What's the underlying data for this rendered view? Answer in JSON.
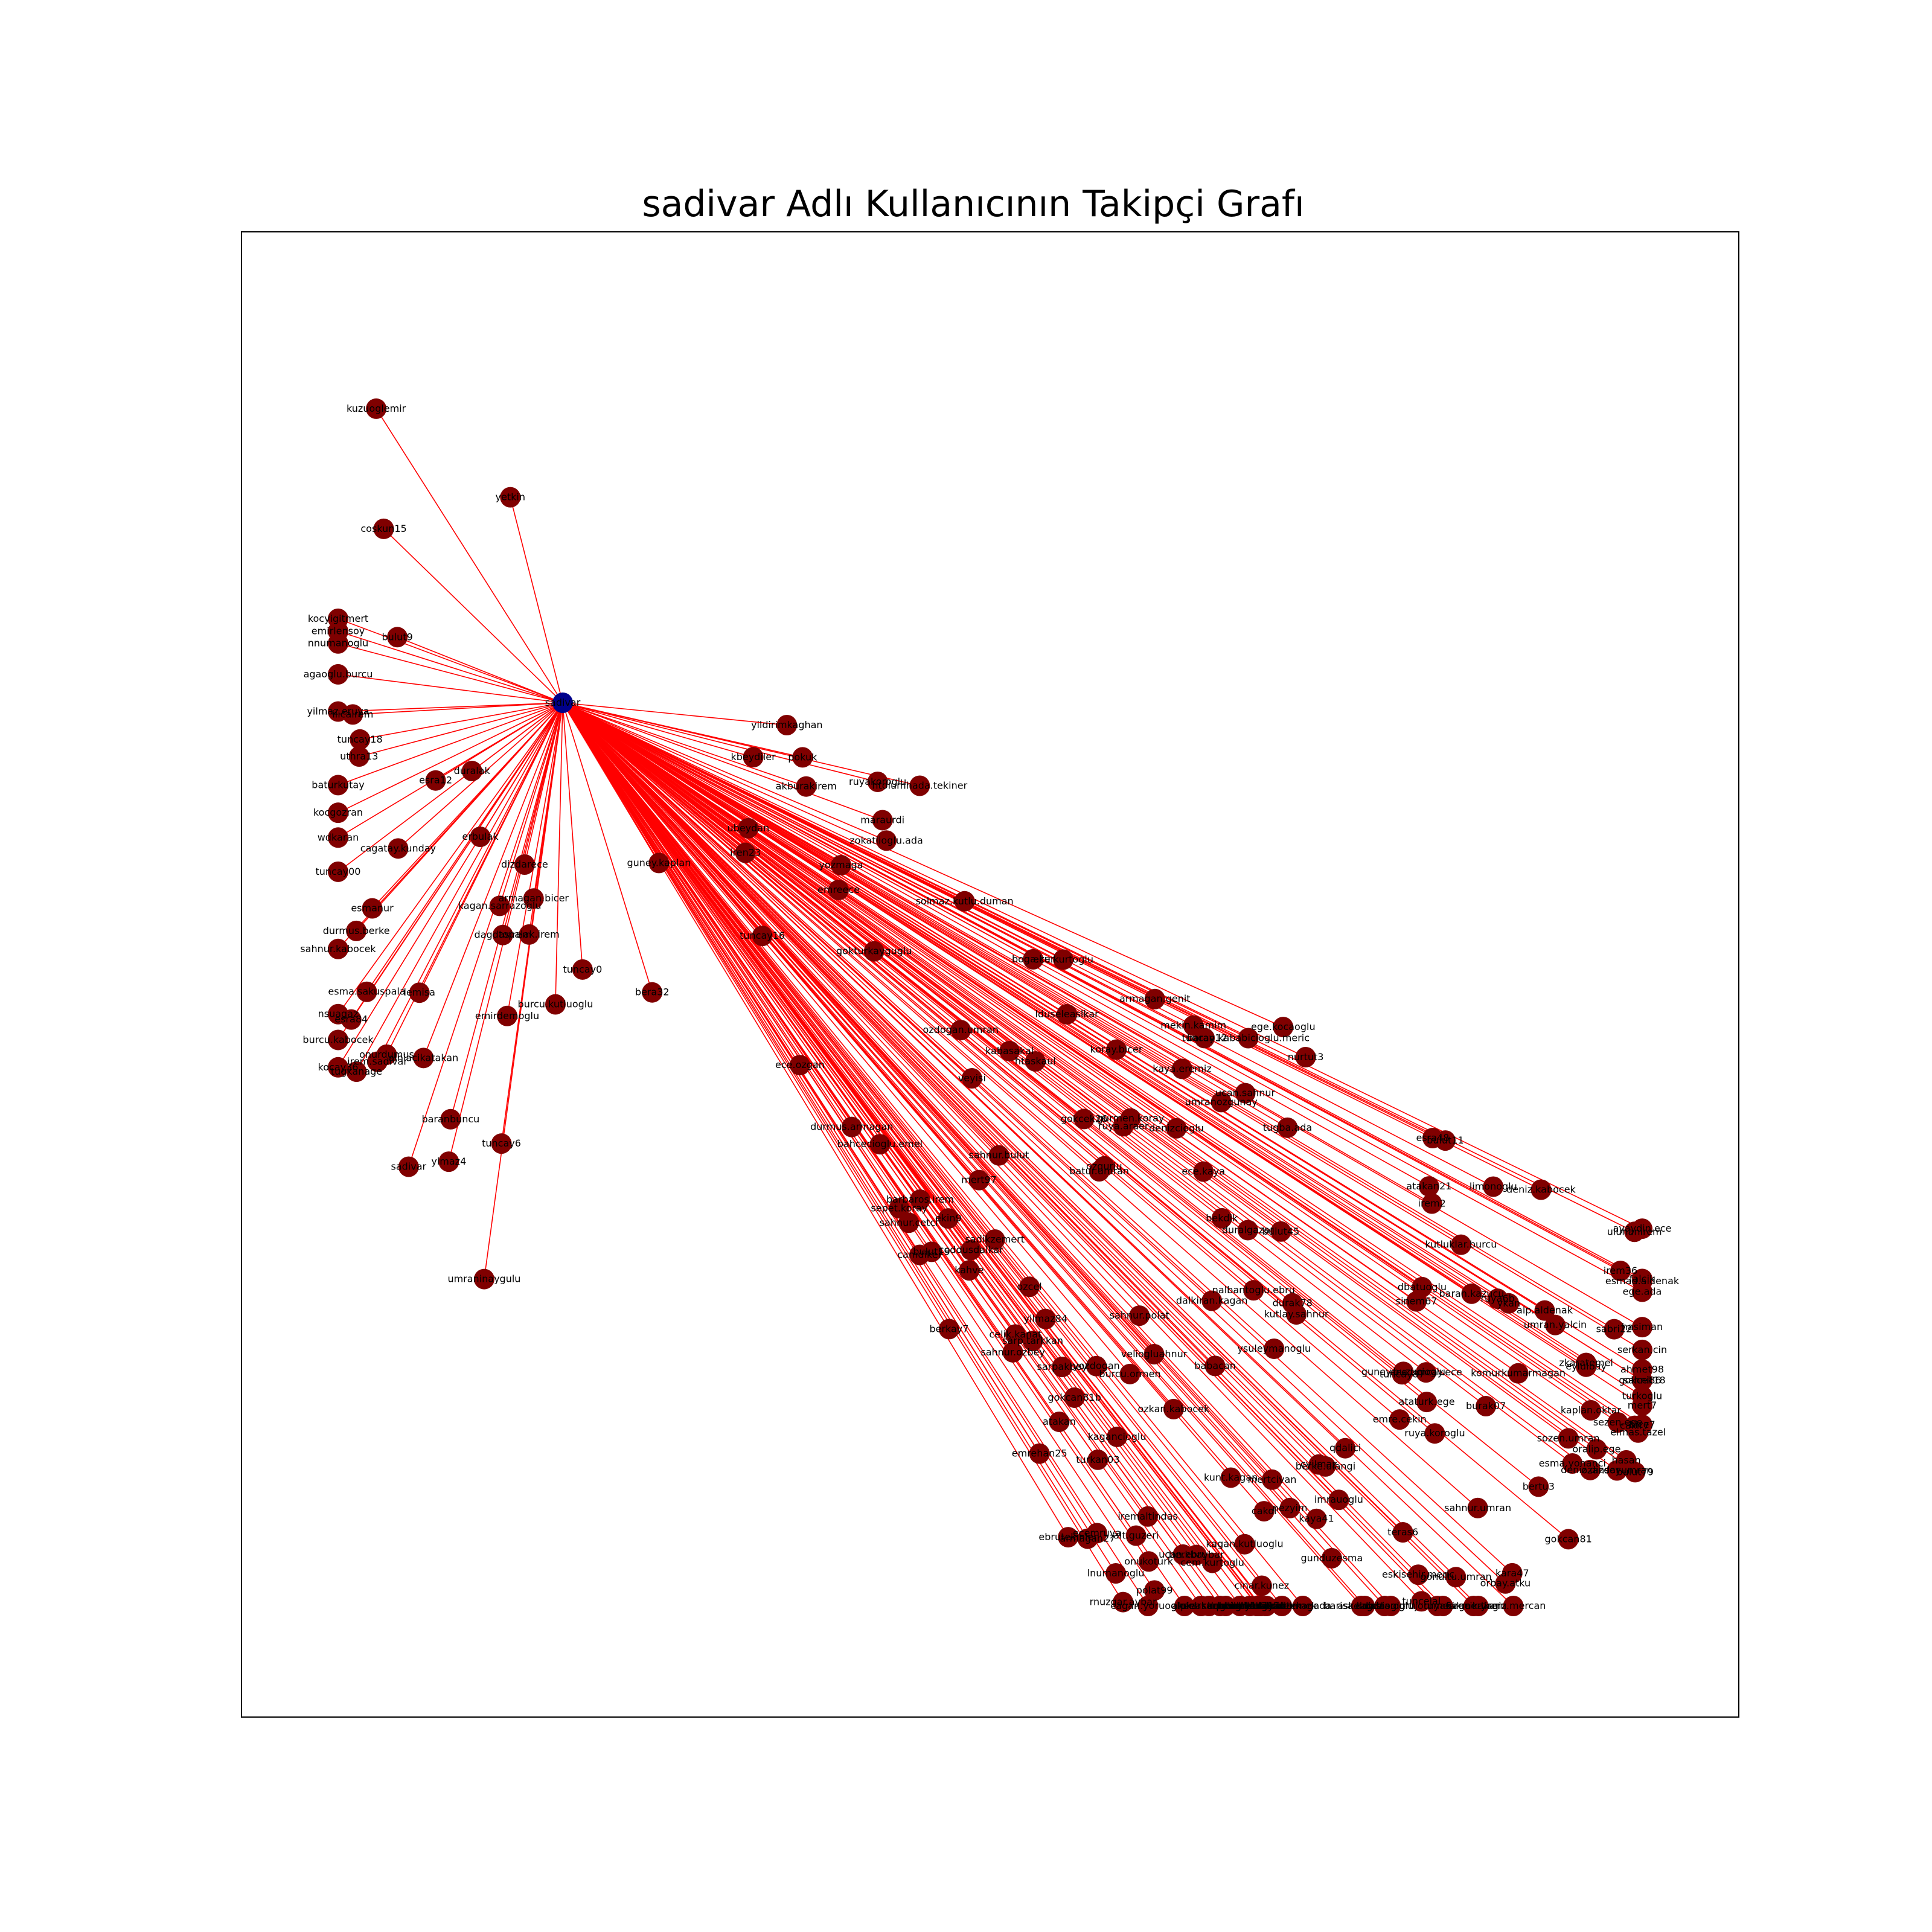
{
  "title": "sadivar Adlı Kullanıcının Takipçi Grafı",
  "colors": {
    "edge": "#ff0000",
    "node": "#800000",
    "center_node": "#00008b",
    "frame": "#000000",
    "background": "#ffffff"
  },
  "graph": {
    "center": "sadivar",
    "followers": [
      "onurdumus",
      "kocyigitmert",
      "alniacikatakan",
      "tuncay18",
      "lemisa",
      "armagan.bicer",
      "akburakirem",
      "yetkin",
      "tuncay00",
      "iren23",
      "coskun15",
      "dizdarece",
      "nnumanoglu",
      "tuncay6",
      "topalak.irem",
      "yozmaga",
      "kuzuoglemir",
      "maraurdi",
      "kbeydiler",
      "emirlensoy",
      "sahnur.kabocek",
      "tugkanage",
      "bulut9",
      "esra84",
      "umraninaygulu",
      "emirdemoglu",
      "ubeydan",
      "cagatay.kunday",
      "tuncay0",
      "kocgozran",
      "burcu.kabocek",
      "kocay36",
      "yildirimkaghan",
      "erbulak",
      "wdkaran",
      "baranbuncu",
      "pokuk",
      "burcu.kutluoglu",
      "dagdasirem",
      "kagan.sarrazoglu",
      "ylmaz4",
      "bera32",
      "baturkutay",
      "tuncay16",
      "ruyakoroglu",
      "esra12",
      "zokatlioglu.ada",
      "uthra13",
      "irem.sadivar",
      "sadivar",
      "agaoglu.burcu",
      "durmus.berke",
      "duralak",
      "nsuagaz",
      "yilmaz.eruya",
      "esma.sakuspala",
      "htolumhada.tekiner",
      "ilicairem",
      "guney.kaplan",
      "esmanur",
      "ayaydin.ece",
      "cagdas.oglu",
      "uluhanirem",
      "sinem67",
      "burcu.ormen",
      "kutlay.sahnur",
      "hasiman",
      "kaya.eremiz",
      "durmus.armagan",
      "gokturkayguglu",
      "gokcan81",
      "berkay7",
      "adamagada",
      "teras6",
      "baran.kababicioglu.meric",
      "sepet.koray",
      "eylulbay",
      "mert7",
      "esra48",
      "dal71",
      "gokcek26",
      "emrehan25",
      "akmertirem",
      "ahmet.kabocek",
      "berke.ulangi",
      "ruya.koroglu",
      "ece.kaya",
      "sarpakbey",
      "veliogluahnur",
      "esmad.aldenak",
      "irem36",
      "bekdik",
      "alt.guzeri",
      "lnumanoglu",
      "kara47",
      "armagan27",
      "solmaz.kutlu.duman",
      "gonultu.umran",
      "ebru.karabocek",
      "aksel",
      "askeldicin",
      "cakir7",
      "veyisi",
      "kuleli",
      "komurkumarmagan",
      "mert97",
      "camdiker",
      "tugba.ada",
      "armagan.genit",
      "sahnur.bulut",
      "gurmen.koray",
      "htaskaul",
      "oralip.ege",
      "ruya.araer",
      "sezen.ege",
      "hasan",
      "cinar.kunez",
      "denizcioglu",
      "ceddusdalkar",
      "bice7",
      "burak07",
      "kiracikakan",
      "baran.kazucu",
      "ysuleymanoglu",
      "cyilmaz",
      "bkeoglu",
      "tuna7",
      "serkan.cin",
      "yozdogan",
      "sarp.tarkkan",
      "ece.tuncay.ece",
      "imrauoglu",
      "deniz.kabocek",
      "batur.umran",
      "barbaros.irem",
      "qdalici",
      "lduseleaslkar",
      "sozen.umran",
      "orbay.atku",
      "bulut45",
      "gunduzesma",
      "kutluklar.burcu",
      "falcik",
      "irem2",
      "sahni86",
      "yilmaz84",
      "bulut19",
      "onukoturk",
      "ebrutekin",
      "kunt.kagan",
      "babacan",
      "bertu3",
      "ucan.sahnur",
      "ruya6",
      "dalkiran.kagan",
      "duralgazar",
      "ege.ada",
      "ecemruya",
      "bahcecioglu.emel",
      "ruya6b",
      "cem.kurtoglu",
      "boga.kur",
      "emre.cekin",
      "elmas.tazel",
      "kucukoglu",
      "limonoglu",
      "ozkan.kabocek",
      "kabasakal",
      "barisa.kabicioglu",
      "ataturk.ege",
      "nezyim",
      "iremaltindas",
      "kagancioglu",
      "karabulut.berk",
      "sabri22",
      "atakan21",
      "guney.buzucioglu",
      "sahnur.polat",
      "ece.ozgan",
      "polat99",
      "mekin.kamim",
      "emreece",
      "turkan03",
      "yagiz.mercan",
      "ahmet98",
      "bulut79",
      "cakol",
      "deniz.dizdar",
      "dbatuoglu",
      "kahve",
      "durak78",
      "nalbantoglu.ebru",
      "mertcivan",
      "pinar.dogan",
      "kaplan.oktar",
      "atakan",
      "ozgurlu",
      "kagan.kutluoglu",
      "sahnur.cetci",
      "tastan.oru",
      "umran.yalcin",
      "rnuzgar.aybar",
      "sadikzemert",
      "eskisehir.meric",
      "tuncelal",
      "turkoglu",
      "bulut11",
      "sahnur.ozbey",
      "ozansoyumran",
      "ekin9",
      "ykan",
      "akarsarp",
      "ozdogan.umran",
      "ozcel",
      "alp.aldenak",
      "koray.bicer",
      "nurtut3",
      "tuncay87",
      "tuncay12",
      "zkaratemel",
      "berkay14",
      "gokcan81b",
      "jourmeraga",
      "ece.kurtoglu",
      "ebru.hakan",
      "ege.kocaoglu",
      "kutay.sutemek",
      "gokcek18",
      "cagan.yoruoglu",
      "ucan.ebru",
      "esma.yonanci",
      "berkbaybar",
      "kaya41",
      "sahnur.umran",
      "celik.kanat",
      "ebrutekinler",
      "umranozgunay"
    ]
  }
}
